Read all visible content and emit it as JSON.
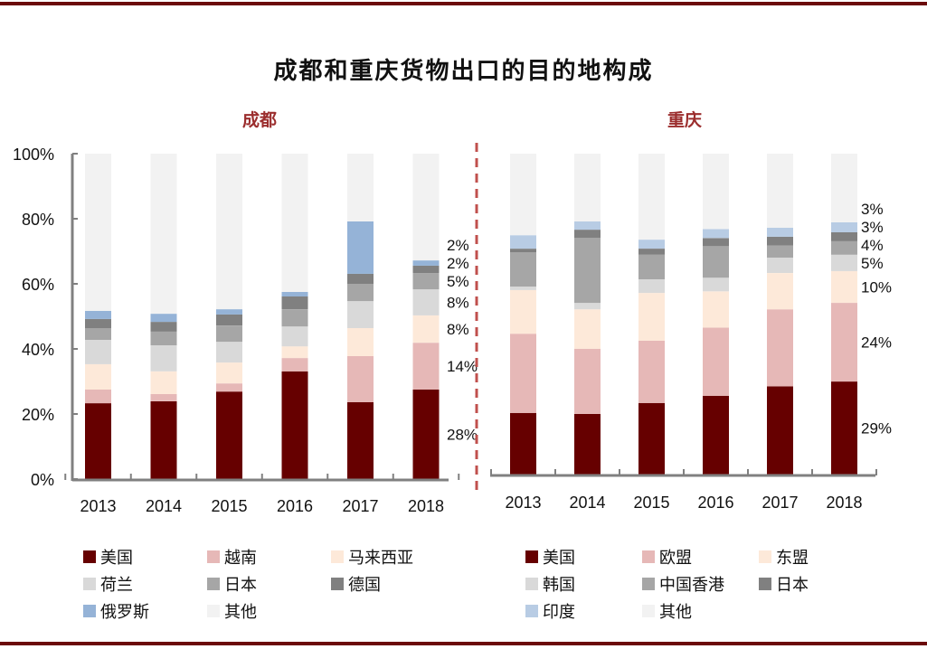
{
  "header": {
    "title": "成都和重庆货物出口的目的地构成"
  },
  "chart_data": [
    {
      "type": "bar",
      "stacked": true,
      "title": "成都",
      "categories": [
        "2013",
        "2014",
        "2015",
        "2016",
        "2017",
        "2018"
      ],
      "ylim": [
        0,
        100
      ],
      "yticks": [
        "0%",
        "20%",
        "40%",
        "60%",
        "80%",
        "100%"
      ],
      "ytick_values": [
        0,
        20,
        40,
        60,
        80,
        100
      ],
      "series": [
        {
          "name": "美国",
          "color": "#660000",
          "values": [
            23.3,
            23.9,
            26.9,
            33.1,
            23.6,
            27.5
          ]
        },
        {
          "name": "越南",
          "color": "#e6b8b7",
          "values": [
            4.2,
            2.2,
            2.5,
            4.1,
            14.2,
            14.4
          ]
        },
        {
          "name": "马来西亚",
          "color": "#fde9d9",
          "values": [
            7.8,
            7.0,
            6.4,
            3.6,
            8.6,
            8.4
          ]
        },
        {
          "name": "荷兰",
          "color": "#d9d9d9",
          "values": [
            7.5,
            8.0,
            6.4,
            6.1,
            8.3,
            8.0
          ]
        },
        {
          "name": "日本",
          "color": "#a6a6a6",
          "values": [
            3.6,
            4.2,
            5.0,
            5.3,
            5.3,
            5.0
          ]
        },
        {
          "name": "德国",
          "color": "#808080",
          "values": [
            2.8,
            3.0,
            3.4,
            3.9,
            3.1,
            2.3
          ]
        },
        {
          "name": "俄罗斯",
          "color": "#95b3d7",
          "values": [
            2.5,
            2.5,
            1.6,
            1.4,
            16.1,
            1.6
          ]
        },
        {
          "name": "其他",
          "color": "#f2f2f2",
          "values": [
            48.3,
            49.2,
            47.8,
            42.5,
            20.8,
            32.8
          ]
        }
      ],
      "data_labels": {
        "category": "2018",
        "labels": [
          "28%",
          "14%",
          "8%",
          "8%",
          "5%",
          "2%",
          "2%"
        ]
      },
      "legend": "bottom",
      "grid": false
    },
    {
      "type": "bar",
      "stacked": true,
      "title": "重庆",
      "categories": [
        "2013",
        "2014",
        "2015",
        "2016",
        "2017",
        "2018"
      ],
      "ylim": [
        0,
        100
      ],
      "series": [
        {
          "name": "美国",
          "color": "#660000",
          "values": [
            19.2,
            18.9,
            22.3,
            24.5,
            27.5,
            29.0
          ]
        },
        {
          "name": "欧盟",
          "color": "#e6b8b7",
          "values": [
            24.7,
            20.3,
            19.4,
            21.3,
            24.0,
            24.5
          ]
        },
        {
          "name": "东盟",
          "color": "#fde9d9",
          "values": [
            13.6,
            12.3,
            14.9,
            11.3,
            11.3,
            9.9
          ]
        },
        {
          "name": "韩国",
          "color": "#d9d9d9",
          "values": [
            1.1,
            2.0,
            4.2,
            4.2,
            4.8,
            5.1
          ]
        },
        {
          "name": "中国香港",
          "color": "#a6a6a6",
          "values": [
            10.7,
            20.3,
            7.7,
            9.9,
            3.7,
            4.2
          ]
        },
        {
          "name": "日本",
          "color": "#808080",
          "values": [
            1.1,
            2.5,
            1.9,
            2.5,
            2.8,
            2.8
          ]
        },
        {
          "name": "印度",
          "color": "#b8cce4",
          "values": [
            4.2,
            2.6,
            2.8,
            2.8,
            2.8,
            3.1
          ]
        },
        {
          "name": "其他",
          "color": "#f2f2f2",
          "values": [
            25.4,
            21.1,
            26.8,
            23.5,
            23.1,
            21.4
          ]
        }
      ],
      "data_labels": {
        "category": "2018",
        "labels": [
          "29%",
          "24%",
          "10%",
          "5%",
          "4%",
          "3%",
          "3%"
        ]
      },
      "legend": "bottom",
      "grid": false
    }
  ]
}
